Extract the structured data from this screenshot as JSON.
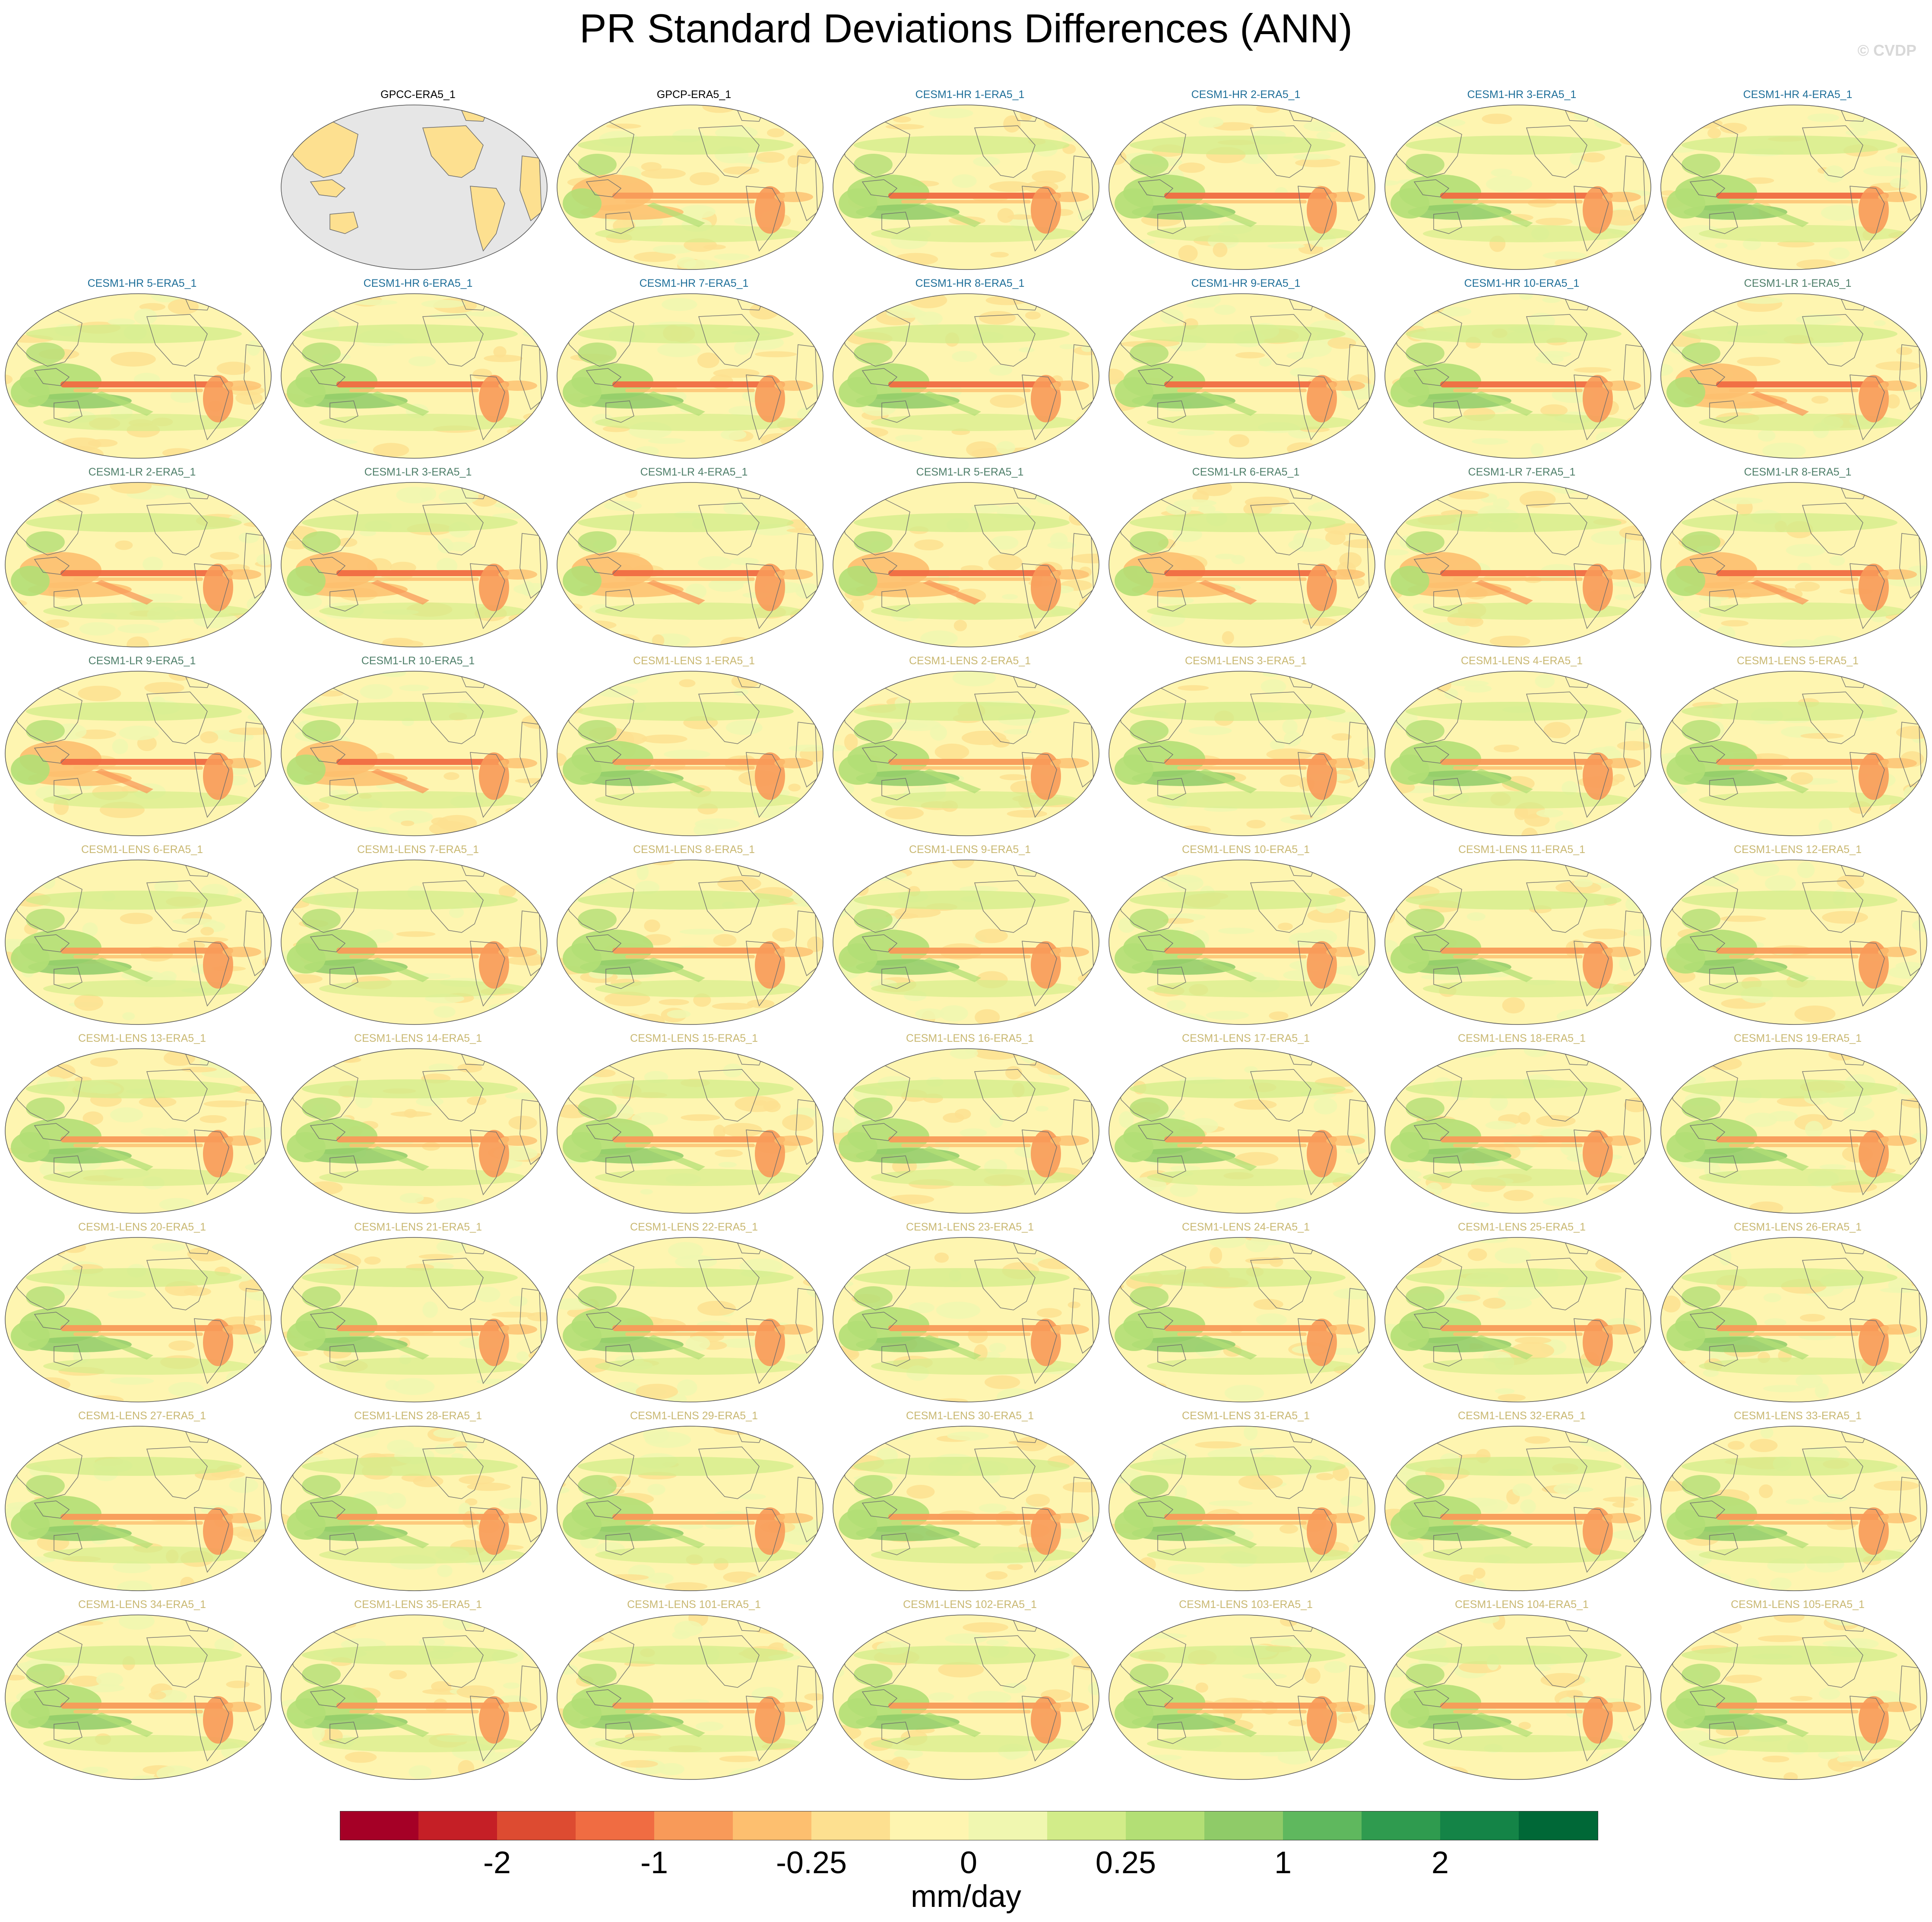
{
  "title": "PR Standard Deviations Differences (ANN)",
  "credit": "© CVDP",
  "units": "mm/day",
  "colors": {
    "group_obs": "#000000",
    "group_hr": "#1f6f99",
    "group_lr": "#4f7f6a",
    "group_lens": "#c9b872",
    "land_missing": "#e6e6e6",
    "coast": "#6e6e6e"
  },
  "colorbar": {
    "colors": [
      "#a50026",
      "#c51f26",
      "#dd4b31",
      "#f06c42",
      "#f89a59",
      "#fdbf6f",
      "#fde090",
      "#fef5b0",
      "#f0f7b0",
      "#d2ec89",
      "#b3df75",
      "#8fcb68",
      "#5fb85e",
      "#2f9b4f",
      "#148447",
      "#006837"
    ],
    "tick_labels": [
      "-2",
      "-1",
      "-0.25",
      "0",
      "0.25",
      "1",
      "2"
    ],
    "tick_boundaries": [
      2,
      4,
      6,
      8,
      10,
      12,
      14
    ]
  },
  "panels": [
    {
      "label": "GPCC-ERA5_1",
      "group": "obs",
      "variant": "gpcc"
    },
    {
      "label": "GPCP-ERA5_1",
      "group": "obs",
      "variant": "gpcp"
    },
    {
      "label": "CESM1-HR 1-ERA5_1",
      "group": "hr"
    },
    {
      "label": "CESM1-HR 2-ERA5_1",
      "group": "hr"
    },
    {
      "label": "CESM1-HR 3-ERA5_1",
      "group": "hr"
    },
    {
      "label": "CESM1-HR 4-ERA5_1",
      "group": "hr"
    },
    {
      "label": "CESM1-HR 5-ERA5_1",
      "group": "hr"
    },
    {
      "label": "CESM1-HR 6-ERA5_1",
      "group": "hr"
    },
    {
      "label": "CESM1-HR 7-ERA5_1",
      "group": "hr"
    },
    {
      "label": "CESM1-HR 8-ERA5_1",
      "group": "hr"
    },
    {
      "label": "CESM1-HR 9-ERA5_1",
      "group": "hr"
    },
    {
      "label": "CESM1-HR 10-ERA5_1",
      "group": "hr"
    },
    {
      "label": "CESM1-LR 1-ERA5_1",
      "group": "lr"
    },
    {
      "label": "CESM1-LR 2-ERA5_1",
      "group": "lr"
    },
    {
      "label": "CESM1-LR 3-ERA5_1",
      "group": "lr"
    },
    {
      "label": "CESM1-LR 4-ERA5_1",
      "group": "lr"
    },
    {
      "label": "CESM1-LR 5-ERA5_1",
      "group": "lr"
    },
    {
      "label": "CESM1-LR 6-ERA5_1",
      "group": "lr"
    },
    {
      "label": "CESM1-LR 7-ERA5_1",
      "group": "lr"
    },
    {
      "label": "CESM1-LR 8-ERA5_1",
      "group": "lr"
    },
    {
      "label": "CESM1-LR 9-ERA5_1",
      "group": "lr"
    },
    {
      "label": "CESM1-LR 10-ERA5_1",
      "group": "lr"
    },
    {
      "label": "CESM1-LENS 1-ERA5_1",
      "group": "lens"
    },
    {
      "label": "CESM1-LENS 2-ERA5_1",
      "group": "lens"
    },
    {
      "label": "CESM1-LENS 3-ERA5_1",
      "group": "lens"
    },
    {
      "label": "CESM1-LENS 4-ERA5_1",
      "group": "lens"
    },
    {
      "label": "CESM1-LENS 5-ERA5_1",
      "group": "lens"
    },
    {
      "label": "CESM1-LENS 6-ERA5_1",
      "group": "lens"
    },
    {
      "label": "CESM1-LENS 7-ERA5_1",
      "group": "lens"
    },
    {
      "label": "CESM1-LENS 8-ERA5_1",
      "group": "lens"
    },
    {
      "label": "CESM1-LENS 9-ERA5_1",
      "group": "lens"
    },
    {
      "label": "CESM1-LENS 10-ERA5_1",
      "group": "lens"
    },
    {
      "label": "CESM1-LENS 11-ERA5_1",
      "group": "lens"
    },
    {
      "label": "CESM1-LENS 12-ERA5_1",
      "group": "lens"
    },
    {
      "label": "CESM1-LENS 13-ERA5_1",
      "group": "lens"
    },
    {
      "label": "CESM1-LENS 14-ERA5_1",
      "group": "lens"
    },
    {
      "label": "CESM1-LENS 15-ERA5_1",
      "group": "lens"
    },
    {
      "label": "CESM1-LENS 16-ERA5_1",
      "group": "lens"
    },
    {
      "label": "CESM1-LENS 17-ERA5_1",
      "group": "lens"
    },
    {
      "label": "CESM1-LENS 18-ERA5_1",
      "group": "lens"
    },
    {
      "label": "CESM1-LENS 19-ERA5_1",
      "group": "lens"
    },
    {
      "label": "CESM1-LENS 20-ERA5_1",
      "group": "lens"
    },
    {
      "label": "CESM1-LENS 21-ERA5_1",
      "group": "lens"
    },
    {
      "label": "CESM1-LENS 22-ERA5_1",
      "group": "lens"
    },
    {
      "label": "CESM1-LENS 23-ERA5_1",
      "group": "lens"
    },
    {
      "label": "CESM1-LENS 24-ERA5_1",
      "group": "lens"
    },
    {
      "label": "CESM1-LENS 25-ERA5_1",
      "group": "lens"
    },
    {
      "label": "CESM1-LENS 26-ERA5_1",
      "group": "lens"
    },
    {
      "label": "CESM1-LENS 27-ERA5_1",
      "group": "lens"
    },
    {
      "label": "CESM1-LENS 28-ERA5_1",
      "group": "lens"
    },
    {
      "label": "CESM1-LENS 29-ERA5_1",
      "group": "lens"
    },
    {
      "label": "CESM1-LENS 30-ERA5_1",
      "group": "lens"
    },
    {
      "label": "CESM1-LENS 31-ERA5_1",
      "group": "lens"
    },
    {
      "label": "CESM1-LENS 32-ERA5_1",
      "group": "lens"
    },
    {
      "label": "CESM1-LENS 33-ERA5_1",
      "group": "lens"
    },
    {
      "label": "CESM1-LENS 34-ERA5_1",
      "group": "lens"
    },
    {
      "label": "CESM1-LENS 35-ERA5_1",
      "group": "lens"
    },
    {
      "label": "CESM1-LENS 101-ERA5_1",
      "group": "lens"
    },
    {
      "label": "CESM1-LENS 102-ERA5_1",
      "group": "lens"
    },
    {
      "label": "CESM1-LENS 103-ERA5_1",
      "group": "lens"
    },
    {
      "label": "CESM1-LENS 104-ERA5_1",
      "group": "lens"
    },
    {
      "label": "CESM1-LENS 105-ERA5_1",
      "group": "lens"
    }
  ]
}
